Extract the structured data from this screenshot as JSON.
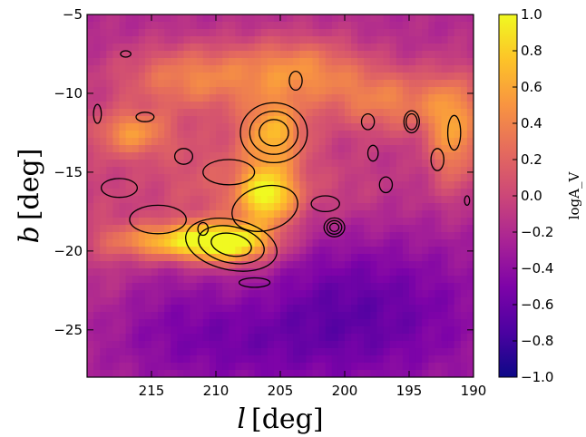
{
  "chart_data": {
    "type": "heatmap",
    "xlabel_var": "l",
    "xlabel_unit": "[deg]",
    "ylabel_var": "b",
    "ylabel_unit": "[deg]",
    "xlim": [
      220,
      190
    ],
    "ylim": [
      -28,
      -5
    ],
    "x_ticks": [
      215,
      210,
      205,
      200,
      195,
      190
    ],
    "y_ticks": [
      -5,
      -10,
      -15,
      -20,
      -25
    ],
    "colorbar": {
      "label": "logA_V",
      "colormap": "plasma",
      "range": [
        -1.0,
        1.0
      ],
      "ticks": [
        1.0,
        0.8,
        0.6,
        0.4,
        0.2,
        0.0,
        -0.2,
        -0.4,
        -0.6,
        -0.8,
        -1.0
      ],
      "tick_labels": [
        "1.0",
        "0.8",
        "0.6",
        "0.4",
        "0.2",
        "0.0",
        "−0.2",
        "−0.4",
        "−0.6",
        "−0.8",
        "−1.0"
      ]
    },
    "field": {
      "background": -0.2,
      "features": [
        {
          "l": 206.0,
          "b": -16.5,
          "sigma_l": 1.6,
          "sigma_b": 1.3,
          "amp": 1.0
        },
        {
          "l": 209.0,
          "b": -19.5,
          "sigma_l": 2.5,
          "sigma_b": 0.9,
          "amp": 1.2
        },
        {
          "l": 214.0,
          "b": -19.4,
          "sigma_l": 3.0,
          "sigma_b": 0.8,
          "amp": 0.75
        },
        {
          "l": 205.5,
          "b": -12.5,
          "sigma_l": 1.8,
          "sigma_b": 1.5,
          "amp": 0.75
        },
        {
          "l": 203.5,
          "b": -8.5,
          "sigma_l": 3.5,
          "sigma_b": 1.5,
          "amp": 0.6
        },
        {
          "l": 212.0,
          "b": -9.0,
          "sigma_l": 4.0,
          "sigma_b": 1.5,
          "amp": 0.55
        },
        {
          "l": 216.5,
          "b": -12.5,
          "sigma_l": 2.0,
          "sigma_b": 1.0,
          "amp": 0.6
        },
        {
          "l": 196.5,
          "b": -10.5,
          "sigma_l": 3.5,
          "sigma_b": 1.5,
          "amp": 0.55
        },
        {
          "l": 191.5,
          "b": -12.5,
          "sigma_l": 1.5,
          "sigma_b": 2.5,
          "amp": 0.7
        },
        {
          "l": 211.0,
          "b": -15.5,
          "sigma_l": 4.0,
          "sigma_b": 3.0,
          "amp": 0.3
        },
        {
          "l": 202.0,
          "b": -16.0,
          "sigma_l": 5.0,
          "sigma_b": 2.0,
          "amp": 0.2
        },
        {
          "l": 200.0,
          "b": -24.0,
          "sigma_l": 8.0,
          "sigma_b": 3.5,
          "amp": -0.45
        },
        {
          "l": 212.0,
          "b": -25.5,
          "sigma_l": 6.0,
          "sigma_b": 2.5,
          "amp": -0.2
        },
        {
          "l": 207.0,
          "b": -22.5,
          "sigma_l": 3.0,
          "sigma_b": 2.0,
          "amp": 0.15
        },
        {
          "l": 219.0,
          "b": -18.0,
          "sigma_l": 2.0,
          "sigma_b": 5.0,
          "amp": 0.15
        }
      ]
    },
    "contours": [
      {
        "l": 208.8,
        "b": -19.6,
        "rl": 3.6,
        "rb": 1.6,
        "rot": 12,
        "levels": 3
      },
      {
        "l": 206.2,
        "b": -17.3,
        "rl": 2.6,
        "rb": 1.4,
        "rot": -15,
        "levels": 1
      },
      {
        "l": 205.5,
        "b": -12.5,
        "rl": 2.6,
        "rb": 1.9,
        "rot": 0,
        "levels": 3
      },
      {
        "l": 209.0,
        "b": -15.0,
        "rl": 2.0,
        "rb": 0.8,
        "rot": 0,
        "levels": 1
      },
      {
        "l": 214.5,
        "b": -18.0,
        "rl": 2.2,
        "rb": 0.9,
        "rot": 0,
        "levels": 1
      },
      {
        "l": 200.8,
        "b": -18.5,
        "rl": 0.8,
        "rb": 0.6,
        "rot": 0,
        "levels": 3
      },
      {
        "l": 201.5,
        "b": -17.0,
        "rl": 1.1,
        "rb": 0.5,
        "rot": 0,
        "levels": 1
      },
      {
        "l": 194.8,
        "b": -11.8,
        "rl": 0.6,
        "rb": 0.7,
        "rot": 0,
        "levels": 2
      },
      {
        "l": 191.5,
        "b": -12.5,
        "rl": 0.5,
        "rb": 1.1,
        "rot": 0,
        "levels": 1
      },
      {
        "l": 217.5,
        "b": -16.0,
        "rl": 1.4,
        "rb": 0.6,
        "rot": 0,
        "levels": 1
      },
      {
        "l": 207.0,
        "b": -22.0,
        "rl": 1.2,
        "rb": 0.3,
        "rot": 0,
        "levels": 1
      },
      {
        "l": 196.8,
        "b": -15.8,
        "rl": 0.5,
        "rb": 0.5,
        "rot": 0,
        "levels": 1
      },
      {
        "l": 192.8,
        "b": -14.2,
        "rl": 0.5,
        "rb": 0.7,
        "rot": 0,
        "levels": 1
      },
      {
        "l": 215.5,
        "b": -11.5,
        "rl": 0.7,
        "rb": 0.3,
        "rot": 0,
        "levels": 1
      },
      {
        "l": 198.2,
        "b": -11.8,
        "rl": 0.5,
        "rb": 0.5,
        "rot": 0,
        "levels": 1
      },
      {
        "l": 211.0,
        "b": -18.6,
        "rl": 0.4,
        "rb": 0.4,
        "rot": 0,
        "levels": 1
      },
      {
        "l": 203.8,
        "b": -9.2,
        "rl": 0.5,
        "rb": 0.6,
        "rot": 0,
        "levels": 1
      },
      {
        "l": 219.2,
        "b": -11.3,
        "rl": 0.3,
        "rb": 0.6,
        "rot": 0,
        "levels": 1
      },
      {
        "l": 212.5,
        "b": -14.0,
        "rl": 0.7,
        "rb": 0.5,
        "rot": 0,
        "levels": 1
      },
      {
        "l": 197.8,
        "b": -13.8,
        "rl": 0.4,
        "rb": 0.5,
        "rot": 0,
        "levels": 1
      },
      {
        "l": 217.0,
        "b": -7.5,
        "rl": 0.4,
        "rb": 0.2,
        "rot": 0,
        "levels": 1
      },
      {
        "l": 190.5,
        "b": -16.8,
        "rl": 0.2,
        "rb": 0.3,
        "rot": 0,
        "levels": 1
      }
    ]
  }
}
